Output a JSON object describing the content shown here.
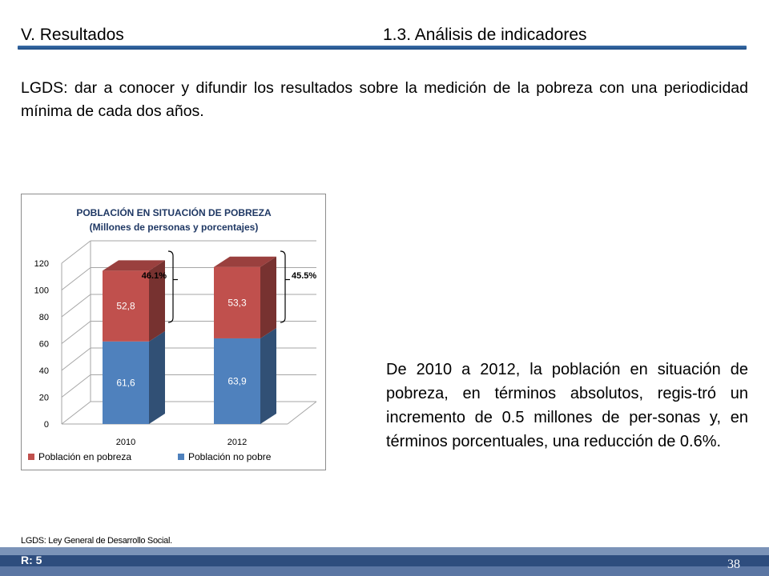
{
  "header": {
    "left": "V. Resultados",
    "right": "1.3. Análisis de indicadores"
  },
  "intro": "LGDS: dar a conocer y difundir los resultados sobre la medición de la pobreza con una periodicidad mínima de cada dos años.",
  "chart_data": {
    "type": "bar",
    "stacked": true,
    "three_d": true,
    "title": "POBLACIÓN EN SITUACIÓN DE POBREZA",
    "subtitle": "(Millones de personas y porcentajes)",
    "categories": [
      "2010",
      "2012"
    ],
    "series": [
      {
        "name": "Población no pobre",
        "values": [
          61.6,
          63.9
        ],
        "labels": [
          "61,6",
          "63,9"
        ],
        "color": "#4f81bd"
      },
      {
        "name": "Población en pobreza",
        "values": [
          52.8,
          53.3
        ],
        "labels": [
          "52,8",
          "53,3"
        ],
        "color": "#c0504d"
      }
    ],
    "annotations": [
      "46.1%",
      "45.5%"
    ],
    "ylim": [
      0,
      120
    ],
    "yticks": [
      "0",
      "20",
      "40",
      "60",
      "80",
      "100",
      "120"
    ],
    "grid": true,
    "legend_position": "bottom",
    "legend": [
      "Población en pobreza",
      "Población no pobre"
    ]
  },
  "body_text": "De 2010 a 2012, la población en situación de pobreza, en términos absolutos, regis-tró un incremento de 0.5 millones de per-sonas y, en términos porcentuales, una reducción de  0.6%.",
  "footnote": "LGDS: Ley General de Desarrollo Social.",
  "footer": {
    "r_label": "R: 5",
    "page_number": "38"
  }
}
